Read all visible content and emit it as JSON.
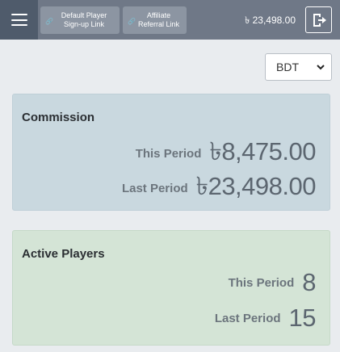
{
  "header": {
    "links": [
      {
        "label": "Default Player\nSign-up Link"
      },
      {
        "label": "Affiliate\nReferral Link"
      }
    ],
    "balance": "৳ 23,498.00"
  },
  "currency": {
    "selected": "BDT"
  },
  "commission": {
    "title": "Commission",
    "this_period_label": "This Period",
    "this_period_value": "৳8,475.00",
    "last_period_label": "Last Period",
    "last_period_value": "৳23,498.00"
  },
  "active_players": {
    "title": "Active Players",
    "this_period_label": "This Period",
    "this_period_value": "8",
    "last_period_label": "Last Period",
    "last_period_value": "15"
  },
  "colors": {
    "topbar": "#6f7887",
    "menu_button": "#4f5b6b",
    "commission_card": "#c9d8df",
    "players_card": "#d4e4d6"
  },
  "icons": {
    "menu": "hamburger-icon",
    "link": "link-icon",
    "logout": "logout-icon",
    "dropdown": "chevron-down-icon"
  }
}
